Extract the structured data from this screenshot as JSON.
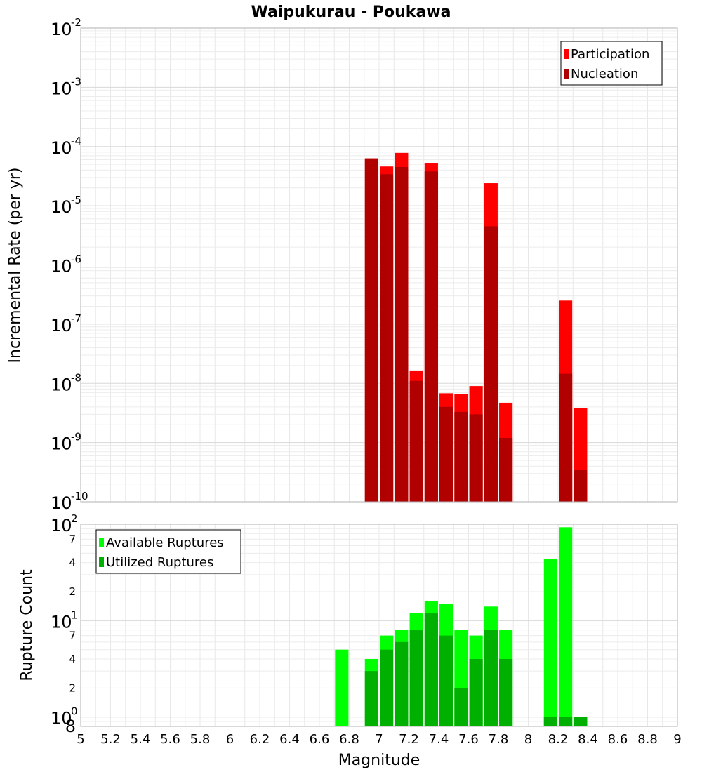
{
  "chart_data": [
    {
      "type": "bar",
      "title": "Waipukurau - Poukawa",
      "xlabel": "",
      "ylabel": "Incremental Rate (per yr)",
      "yscale": "log",
      "ylim": [
        1e-10,
        0.01
      ],
      "xlim": [
        5,
        9
      ],
      "grid": true,
      "legend_position": "top-right",
      "x": [
        6.95,
        7.05,
        7.15,
        7.25,
        7.35,
        7.45,
        7.55,
        7.65,
        7.75,
        7.85,
        8.25,
        8.35
      ],
      "series": [
        {
          "name": "Participation",
          "color": "#ff0000",
          "values": [
            6.3e-05,
            4.6e-05,
            7.8e-05,
            1.65e-08,
            5.3e-05,
            6.8e-09,
            6.6e-09,
            9e-09,
            2.4e-05,
            4.7e-09,
            2.5e-07,
            3.8e-09
          ]
        },
        {
          "name": "Nucleation",
          "color": "#b00000",
          "values": [
            6.3e-05,
            3.4e-05,
            4.5e-05,
            1.1e-08,
            3.8e-05,
            4e-09,
            3.3e-09,
            3e-09,
            4.5e-06,
            1.2e-09,
            1.45e-08,
            3.5e-10
          ]
        }
      ]
    },
    {
      "type": "bar",
      "xlabel": "Magnitude",
      "ylabel": "Rupture Count",
      "yscale": "log",
      "ylim": [
        0.8,
        100
      ],
      "xlim": [
        5,
        9
      ],
      "grid": true,
      "legend_position": "top-left",
      "x": [
        6.75,
        6.95,
        7.05,
        7.15,
        7.25,
        7.35,
        7.45,
        7.55,
        7.65,
        7.75,
        7.85,
        8.15,
        8.25,
        8.35
      ],
      "series": [
        {
          "name": "Available Ruptures",
          "color": "#00ff00",
          "values": [
            5,
            4,
            7,
            8,
            12,
            16,
            15,
            8,
            7,
            14,
            8,
            44,
            93,
            1
          ]
        },
        {
          "name": "Utilized Ruptures",
          "color": "#00b000",
          "values": [
            0,
            3,
            5,
            6,
            8,
            12,
            7,
            2,
            4,
            8,
            4,
            1,
            1,
            1
          ]
        }
      ]
    }
  ],
  "x_ticks": [
    "5",
    "5.2",
    "5.4",
    "5.6",
    "5.8",
    "6",
    "6.2",
    "6.4",
    "6.6",
    "6.8",
    "7",
    "7.2",
    "7.4",
    "7.6",
    "7.8",
    "8",
    "8.2",
    "8.4",
    "8.6",
    "8.8",
    "9"
  ],
  "top_y_ticks": [
    {
      "base": "10",
      "exp": "-10"
    },
    {
      "base": "10",
      "exp": "-9"
    },
    {
      "base": "10",
      "exp": "-8"
    },
    {
      "base": "10",
      "exp": "-7"
    },
    {
      "base": "10",
      "exp": "-6"
    },
    {
      "base": "10",
      "exp": "-5"
    },
    {
      "base": "10",
      "exp": "-4"
    },
    {
      "base": "10",
      "exp": "-3"
    },
    {
      "base": "10",
      "exp": "-2"
    }
  ],
  "bottom_y_major": [
    {
      "base": "10",
      "exp": "0"
    },
    {
      "base": "10",
      "exp": "1"
    },
    {
      "base": "10",
      "exp": "2"
    }
  ],
  "bottom_y_minor": [
    "8",
    "2",
    "4",
    "7",
    "2",
    "4",
    "7"
  ]
}
